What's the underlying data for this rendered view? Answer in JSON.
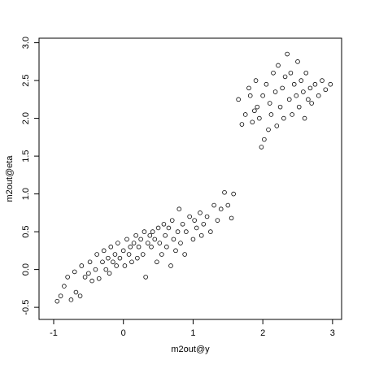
{
  "chart_data": {
    "type": "scatter",
    "x_label": "m2out@y",
    "y_label": "m2out@eta",
    "xlim": [
      -1.21,
      3.13
    ],
    "ylim": [
      -0.66,
      3.06
    ],
    "xticks": [
      -1,
      0,
      1,
      2,
      3
    ],
    "yticks": [
      -0.5,
      {
        "value": 0,
        "label": "0.0"
      },
      0.5,
      {
        "value": 1,
        "label": "1.0"
      },
      1.5,
      {
        "value": 2,
        "label": "2.0"
      },
      2.5,
      {
        "value": 3,
        "label": "3.0"
      }
    ],
    "color": "#000000",
    "x": [
      -0.95,
      -0.9,
      -0.85,
      -0.8,
      -0.75,
      -0.7,
      -0.68,
      -0.62,
      -0.6,
      -0.55,
      -0.5,
      -0.48,
      -0.45,
      -0.4,
      -0.38,
      -0.35,
      -0.3,
      -0.28,
      -0.25,
      -0.22,
      -0.2,
      -0.18,
      -0.15,
      -0.12,
      -0.1,
      -0.08,
      -0.05,
      0.0,
      0.02,
      0.05,
      0.08,
      0.1,
      0.12,
      0.15,
      0.18,
      0.2,
      0.22,
      0.25,
      0.28,
      0.3,
      0.32,
      0.35,
      0.38,
      0.4,
      0.42,
      0.45,
      0.48,
      0.5,
      0.52,
      0.55,
      0.58,
      0.6,
      0.62,
      0.65,
      0.68,
      0.7,
      0.72,
      0.75,
      0.78,
      0.8,
      0.82,
      0.85,
      0.88,
      0.9,
      0.95,
      1.0,
      1.02,
      1.05,
      1.1,
      1.12,
      1.15,
      1.2,
      1.25,
      1.3,
      1.35,
      1.4,
      1.45,
      1.5,
      1.55,
      1.58,
      1.65,
      1.7,
      1.75,
      1.8,
      1.82,
      1.85,
      1.88,
      1.9,
      1.92,
      1.95,
      1.98,
      2.0,
      2.02,
      2.05,
      2.08,
      2.1,
      2.12,
      2.15,
      2.18,
      2.2,
      2.22,
      2.25,
      2.28,
      2.3,
      2.32,
      2.35,
      2.38,
      2.4,
      2.42,
      2.45,
      2.48,
      2.5,
      2.52,
      2.55,
      2.58,
      2.6,
      2.62,
      2.65,
      2.68,
      2.7,
      2.75,
      2.8,
      2.85,
      2.9,
      2.97
    ],
    "values": [
      -0.42,
      -0.35,
      -0.22,
      -0.1,
      -0.4,
      -0.03,
      -0.3,
      -0.35,
      0.05,
      -0.1,
      -0.05,
      0.1,
      -0.15,
      0.0,
      0.2,
      -0.12,
      0.1,
      0.25,
      0.0,
      0.15,
      -0.05,
      0.3,
      0.1,
      0.2,
      0.05,
      0.35,
      0.15,
      0.25,
      0.05,
      0.4,
      0.2,
      0.3,
      0.1,
      0.35,
      0.45,
      0.15,
      0.3,
      0.4,
      0.2,
      0.5,
      -0.1,
      0.35,
      0.45,
      0.3,
      0.5,
      0.4,
      0.1,
      0.55,
      0.35,
      0.2,
      0.6,
      0.45,
      0.3,
      0.55,
      0.05,
      0.65,
      0.4,
      0.25,
      0.5,
      0.8,
      0.35,
      0.6,
      0.2,
      0.5,
      0.7,
      0.4,
      0.65,
      0.55,
      0.75,
      0.45,
      0.6,
      0.7,
      0.5,
      0.85,
      0.65,
      0.8,
      1.02,
      0.85,
      0.68,
      1.0,
      2.25,
      1.92,
      2.05,
      2.4,
      2.3,
      1.95,
      2.1,
      2.5,
      2.15,
      2.0,
      1.62,
      2.3,
      1.72,
      2.45,
      1.85,
      2.2,
      2.05,
      2.6,
      2.35,
      1.9,
      2.7,
      2.15,
      2.4,
      2.0,
      2.55,
      2.85,
      2.25,
      2.6,
      2.05,
      2.45,
      2.3,
      2.75,
      2.15,
      2.5,
      2.35,
      2.0,
      2.6,
      2.25,
      2.4,
      2.2,
      2.45,
      2.3,
      2.5,
      2.38,
      2.45
    ]
  }
}
